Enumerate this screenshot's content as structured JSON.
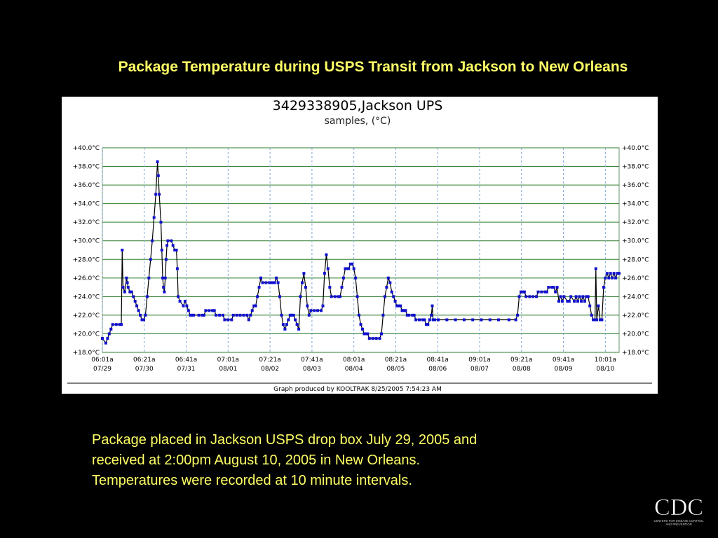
{
  "slide": {
    "title": "Package Temperature during USPS Transit from Jackson to New Orleans",
    "caption_lines": [
      "Package placed in Jackson USPS drop box July 29, 2005 and",
      "received at 2:00pm August 10, 2005 in New Orleans.",
      "Temperatures were recorded at 10 minute intervals."
    ],
    "logo": {
      "text": "CDC",
      "subtext_1": "CENTERS FOR DISEASE CONTROL",
      "subtext_2": "AND PREVENTION"
    }
  },
  "chart_data": {
    "type": "line",
    "title": "3429338905,Jackson UPS",
    "subtitle": "samples, (°C)",
    "footer": "Graph produced by KOOLTRAK 8/25/2005 7:54:23 AM",
    "x_unit": "hours since 07/29 06:01a",
    "xlim": [
      0,
      300
    ],
    "ylim": [
      18,
      40
    ],
    "grid": true,
    "y_tick_values": [
      18,
      20,
      22,
      24,
      26,
      28,
      30,
      32,
      34,
      36,
      38,
      40
    ],
    "y_tick_labels": [
      "+18.0°C",
      "+20.0°C",
      "+22.0°C",
      "+24.0°C",
      "+26.0°C",
      "+28.0°C",
      "+30.0°C",
      "+32.0°C",
      "+34.0°C",
      "+36.0°C",
      "+38.0°C",
      "+40.0°C"
    ],
    "x_ticks": [
      {
        "time": "06:01a",
        "date": "07/29"
      },
      {
        "time": "06:21a",
        "date": "07/30"
      },
      {
        "time": "06:41a",
        "date": "07/31"
      },
      {
        "time": "07:01a",
        "date": "08/01"
      },
      {
        "time": "07:21a",
        "date": "08/02"
      },
      {
        "time": "07:41a",
        "date": "08/03"
      },
      {
        "time": "08:01a",
        "date": "08/04"
      },
      {
        "time": "08:21a",
        "date": "08/05"
      },
      {
        "time": "08:41a",
        "date": "08/06"
      },
      {
        "time": "09:01a",
        "date": "08/07"
      },
      {
        "time": "09:21a",
        "date": "08/08"
      },
      {
        "time": "09:41a",
        "date": "08/09"
      },
      {
        "time": "10:01a",
        "date": "08/10"
      }
    ],
    "x_tick_values": [
      0,
      24.33,
      48.67,
      73,
      97.33,
      121.67,
      146,
      170.33,
      194.67,
      219,
      243.33,
      267.67,
      292
    ],
    "series": [
      {
        "color": "#1010d0",
        "points": [
          [
            0,
            19.5
          ],
          [
            2,
            19
          ],
          [
            3,
            19.5
          ],
          [
            4,
            20
          ],
          [
            5,
            20.5
          ],
          [
            6,
            21
          ],
          [
            8,
            21
          ],
          [
            10,
            21
          ],
          [
            11,
            21
          ],
          [
            11.5,
            29
          ],
          [
            12,
            25
          ],
          [
            13,
            24.5
          ],
          [
            14,
            26
          ],
          [
            14.5,
            25.5
          ],
          [
            15,
            25
          ],
          [
            16,
            24.5
          ],
          [
            17,
            24.5
          ],
          [
            18,
            24
          ],
          [
            19,
            23.5
          ],
          [
            20,
            23
          ],
          [
            21,
            22.5
          ],
          [
            22,
            22
          ],
          [
            23,
            21.5
          ],
          [
            24,
            21.5
          ],
          [
            25,
            22
          ],
          [
            26,
            24
          ],
          [
            27,
            26
          ],
          [
            28,
            28
          ],
          [
            29,
            30
          ],
          [
            30,
            32.5
          ],
          [
            31,
            35
          ],
          [
            32,
            38.5
          ],
          [
            32.5,
            37
          ],
          [
            33,
            35
          ],
          [
            34,
            32
          ],
          [
            34.5,
            29
          ],
          [
            35,
            26
          ],
          [
            35.5,
            25
          ],
          [
            36,
            24.5
          ],
          [
            36.5,
            26
          ],
          [
            37,
            28
          ],
          [
            37.5,
            29.5
          ],
          [
            38,
            30
          ],
          [
            40,
            30
          ],
          [
            41,
            29.5
          ],
          [
            42,
            29
          ],
          [
            43,
            29
          ],
          [
            43.5,
            27
          ],
          [
            44,
            24
          ],
          [
            45,
            23.5
          ],
          [
            47,
            23
          ],
          [
            48,
            23.5
          ],
          [
            49,
            23
          ],
          [
            50,
            22.5
          ],
          [
            51,
            22
          ],
          [
            52,
            22
          ],
          [
            53,
            22
          ],
          [
            56,
            22
          ],
          [
            58,
            22
          ],
          [
            59,
            22
          ],
          [
            60,
            22.5
          ],
          [
            62,
            22.5
          ],
          [
            64,
            22.5
          ],
          [
            65,
            22.5
          ],
          [
            66,
            22
          ],
          [
            68,
            22
          ],
          [
            70,
            22
          ],
          [
            71,
            21.5
          ],
          [
            73,
            21.5
          ],
          [
            75,
            21.5
          ],
          [
            76,
            22
          ],
          [
            78,
            22
          ],
          [
            80,
            22
          ],
          [
            82,
            22
          ],
          [
            84,
            22
          ],
          [
            85,
            21.5
          ],
          [
            86,
            22
          ],
          [
            87,
            22.5
          ],
          [
            88,
            23
          ],
          [
            89,
            23
          ],
          [
            90,
            24
          ],
          [
            91,
            25
          ],
          [
            92,
            26
          ],
          [
            93,
            25.5
          ],
          [
            95,
            25.5
          ],
          [
            97,
            25.5
          ],
          [
            98,
            25.5
          ],
          [
            99,
            25.5
          ],
          [
            100,
            25.5
          ],
          [
            101,
            26
          ],
          [
            102,
            25.5
          ],
          [
            103,
            24
          ],
          [
            104,
            22
          ],
          [
            105,
            21
          ],
          [
            106,
            20.5
          ],
          [
            107,
            21
          ],
          [
            108,
            21.5
          ],
          [
            109,
            22
          ],
          [
            110,
            22
          ],
          [
            111,
            22
          ],
          [
            112,
            21.5
          ],
          [
            113,
            21
          ],
          [
            114,
            20.5
          ],
          [
            115,
            24
          ],
          [
            116,
            25.5
          ],
          [
            117,
            26.5
          ],
          [
            118,
            25
          ],
          [
            119,
            23
          ],
          [
            120,
            22
          ],
          [
            121,
            22.5
          ],
          [
            123,
            22.5
          ],
          [
            125,
            22.5
          ],
          [
            127,
            22.5
          ],
          [
            128,
            23
          ],
          [
            129,
            26.5
          ],
          [
            130,
            28.5
          ],
          [
            131,
            27
          ],
          [
            132,
            25
          ],
          [
            133,
            24
          ],
          [
            135,
            24
          ],
          [
            137,
            24
          ],
          [
            138,
            24
          ],
          [
            139,
            25
          ],
          [
            140,
            26
          ],
          [
            141,
            27
          ],
          [
            142,
            27
          ],
          [
            143,
            27
          ],
          [
            144,
            27.5
          ],
          [
            145,
            27.5
          ],
          [
            146,
            27
          ],
          [
            147,
            26
          ],
          [
            148,
            24
          ],
          [
            149,
            22
          ],
          [
            150,
            21
          ],
          [
            151,
            20.5
          ],
          [
            152,
            20
          ],
          [
            153,
            20
          ],
          [
            154,
            20
          ],
          [
            155,
            19.5
          ],
          [
            157,
            19.5
          ],
          [
            159,
            19.5
          ],
          [
            161,
            19.5
          ],
          [
            162,
            20
          ],
          [
            163,
            22
          ],
          [
            164,
            24
          ],
          [
            165,
            25
          ],
          [
            166,
            26
          ],
          [
            167,
            25.5
          ],
          [
            168,
            24.5
          ],
          [
            169,
            24
          ],
          [
            170,
            23.5
          ],
          [
            171,
            23
          ],
          [
            172,
            23
          ],
          [
            173,
            23
          ],
          [
            174,
            22.5
          ],
          [
            175,
            22.5
          ],
          [
            176,
            22.5
          ],
          [
            177,
            22
          ],
          [
            178,
            22
          ],
          [
            180,
            22
          ],
          [
            181,
            22
          ],
          [
            182,
            21.5
          ],
          [
            184,
            21.5
          ],
          [
            186,
            21.5
          ],
          [
            187,
            21.5
          ],
          [
            188,
            21
          ],
          [
            189,
            21
          ],
          [
            190,
            21.5
          ],
          [
            191,
            22
          ],
          [
            191.5,
            23
          ],
          [
            192,
            21.5
          ],
          [
            193,
            21.5
          ],
          [
            195,
            21.5
          ],
          [
            200,
            21.5
          ],
          [
            205,
            21.5
          ],
          [
            210,
            21.5
          ],
          [
            215,
            21.5
          ],
          [
            220,
            21.5
          ],
          [
            225,
            21.5
          ],
          [
            230,
            21.5
          ],
          [
            236,
            21.5
          ],
          [
            240,
            21.5
          ],
          [
            241,
            22
          ],
          [
            242,
            24
          ],
          [
            243,
            24.5
          ],
          [
            244,
            24.5
          ],
          [
            245,
            24.5
          ],
          [
            246,
            24
          ],
          [
            248,
            24
          ],
          [
            250,
            24
          ],
          [
            252,
            24
          ],
          [
            253,
            24.5
          ],
          [
            255,
            24.5
          ],
          [
            257,
            24.5
          ],
          [
            258,
            24.5
          ],
          [
            259,
            25
          ],
          [
            261,
            25
          ],
          [
            262,
            25
          ],
          [
            263,
            24.5
          ],
          [
            264,
            25
          ],
          [
            265,
            23.5
          ],
          [
            266,
            24
          ],
          [
            267,
            23.5
          ],
          [
            268,
            24
          ],
          [
            270,
            23.5
          ],
          [
            271,
            23.5
          ],
          [
            272,
            24
          ],
          [
            274,
            23.5
          ],
          [
            275,
            24
          ],
          [
            276,
            23.5
          ],
          [
            277,
            24
          ],
          [
            278,
            23.5
          ],
          [
            279,
            24
          ],
          [
            280,
            23.5
          ],
          [
            281,
            24
          ],
          [
            282,
            24
          ],
          [
            283,
            23
          ],
          [
            284,
            22
          ],
          [
            285,
            21.5
          ],
          [
            286,
            21.5
          ],
          [
            286.5,
            27
          ],
          [
            287,
            21.5
          ],
          [
            288,
            23
          ],
          [
            289,
            21.5
          ],
          [
            290,
            21.5
          ],
          [
            291,
            25
          ],
          [
            292,
            26
          ],
          [
            293,
            26.5
          ],
          [
            294,
            26
          ],
          [
            295,
            26.5
          ],
          [
            296,
            26
          ],
          [
            297,
            26.5
          ],
          [
            298,
            26
          ],
          [
            299,
            26.5
          ],
          [
            300,
            26.5
          ]
        ]
      }
    ]
  }
}
